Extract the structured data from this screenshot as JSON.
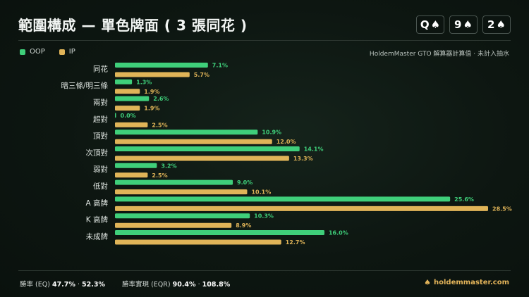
{
  "title": "範圍構成 — 單色牌面 ( 3 張同花 )",
  "board": [
    {
      "rank": "Q",
      "suit": "♠"
    },
    {
      "rank": "9",
      "suit": "♠"
    },
    {
      "rank": "2",
      "suit": "♠"
    }
  ],
  "legend": {
    "oop": "OOP",
    "ip": "IP"
  },
  "note": "HoldemMaster GTO 解算器計算值 · 未計入抽水",
  "colors": {
    "oop": "#3fcf7a",
    "ip": "#e0b458"
  },
  "chart_data": {
    "type": "bar",
    "orientation": "horizontal",
    "categories": [
      "同花",
      "暗三條/明三條",
      "兩對",
      "超對",
      "頂對",
      "次頂對",
      "弱對",
      "低對",
      "A 高牌",
      "K 高牌",
      "未成牌"
    ],
    "series": [
      {
        "name": "OOP",
        "values": [
          7.1,
          1.3,
          2.6,
          0.0,
          10.9,
          14.1,
          3.2,
          9.0,
          25.6,
          10.3,
          16.0
        ]
      },
      {
        "name": "IP",
        "values": [
          5.7,
          1.9,
          1.9,
          2.5,
          12.0,
          13.3,
          2.5,
          10.1,
          28.5,
          8.9,
          12.7
        ]
      }
    ],
    "value_suffix": "%",
    "xlim": [
      0,
      28.5
    ],
    "legend_position": "top-left"
  },
  "footer": {
    "eq_label": "勝率 (EQ)",
    "eq_oop": "47.7%",
    "eq_sep": "·",
    "eq_ip": "52.3%",
    "eqr_label": "勝率實現 (EQR)",
    "eqr_oop": "90.4%",
    "eqr_sep": "·",
    "eqr_ip": "108.8%",
    "brand_icon": "spade-icon",
    "brand": "holdemmaster.com"
  }
}
